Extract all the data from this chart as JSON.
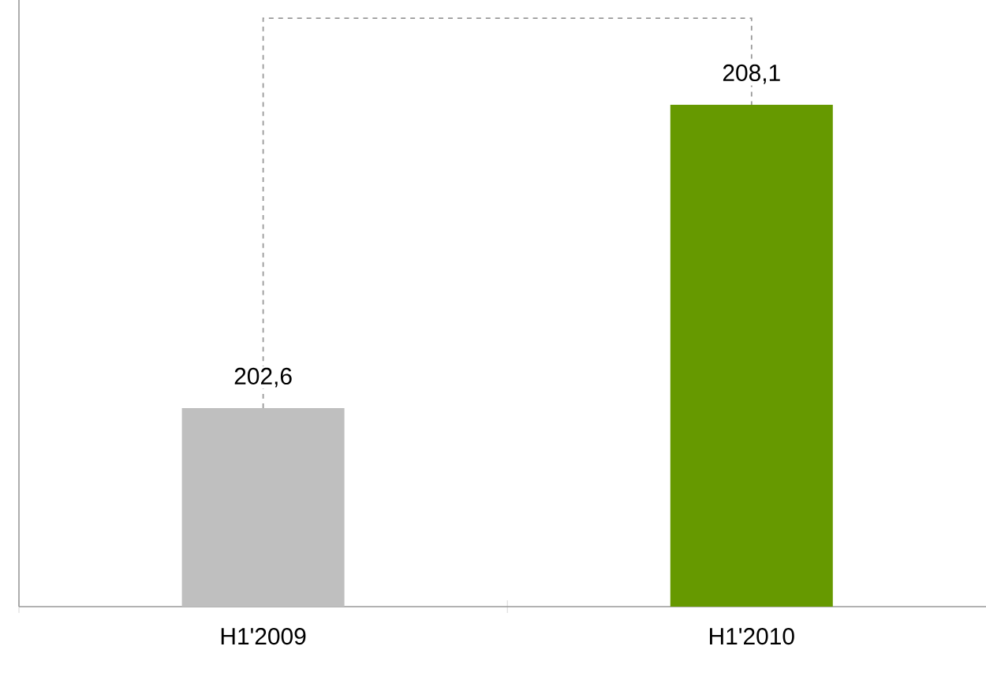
{
  "chart_data": {
    "type": "bar",
    "categories": [
      "H1'2009",
      "H1'2010"
    ],
    "values": [
      202.6,
      208.1
    ],
    "colors": [
      "#bfbfbf",
      "#669900"
    ],
    "value_labels": [
      "202,6",
      "208,1"
    ],
    "ylim": [
      199,
      210
    ],
    "tick_labels": "x"
  }
}
